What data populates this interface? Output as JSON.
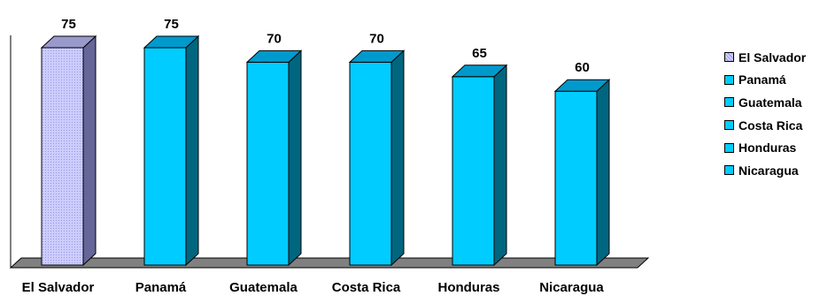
{
  "chart_data": {
    "type": "bar",
    "style": "3d-column",
    "categories": [
      "El Salvador",
      "Panamá",
      "Guatemala",
      "Costa Rica",
      "Honduras",
      "Nicaragua"
    ],
    "values": [
      75,
      75,
      70,
      70,
      65,
      60
    ],
    "data_labels": [
      "75",
      "75",
      "70",
      "70",
      "65",
      "60"
    ],
    "title": "",
    "xlabel": "",
    "ylabel": "",
    "ylim": [
      0,
      75
    ],
    "grid": false,
    "legend": {
      "placement": "right",
      "entries": [
        "El Salvador",
        "Panamá",
        "Guatemala",
        "Costa Rica",
        "Honduras",
        "Nicaragua"
      ]
    },
    "colors": {
      "highlight_front": "#ccccff",
      "highlight_side": "#666699",
      "highlight_top": "#9999cc",
      "front": "#00ccff",
      "side": "#006680",
      "top": "#0099cc",
      "floor": "#808080"
    },
    "highlight_index": 0
  }
}
